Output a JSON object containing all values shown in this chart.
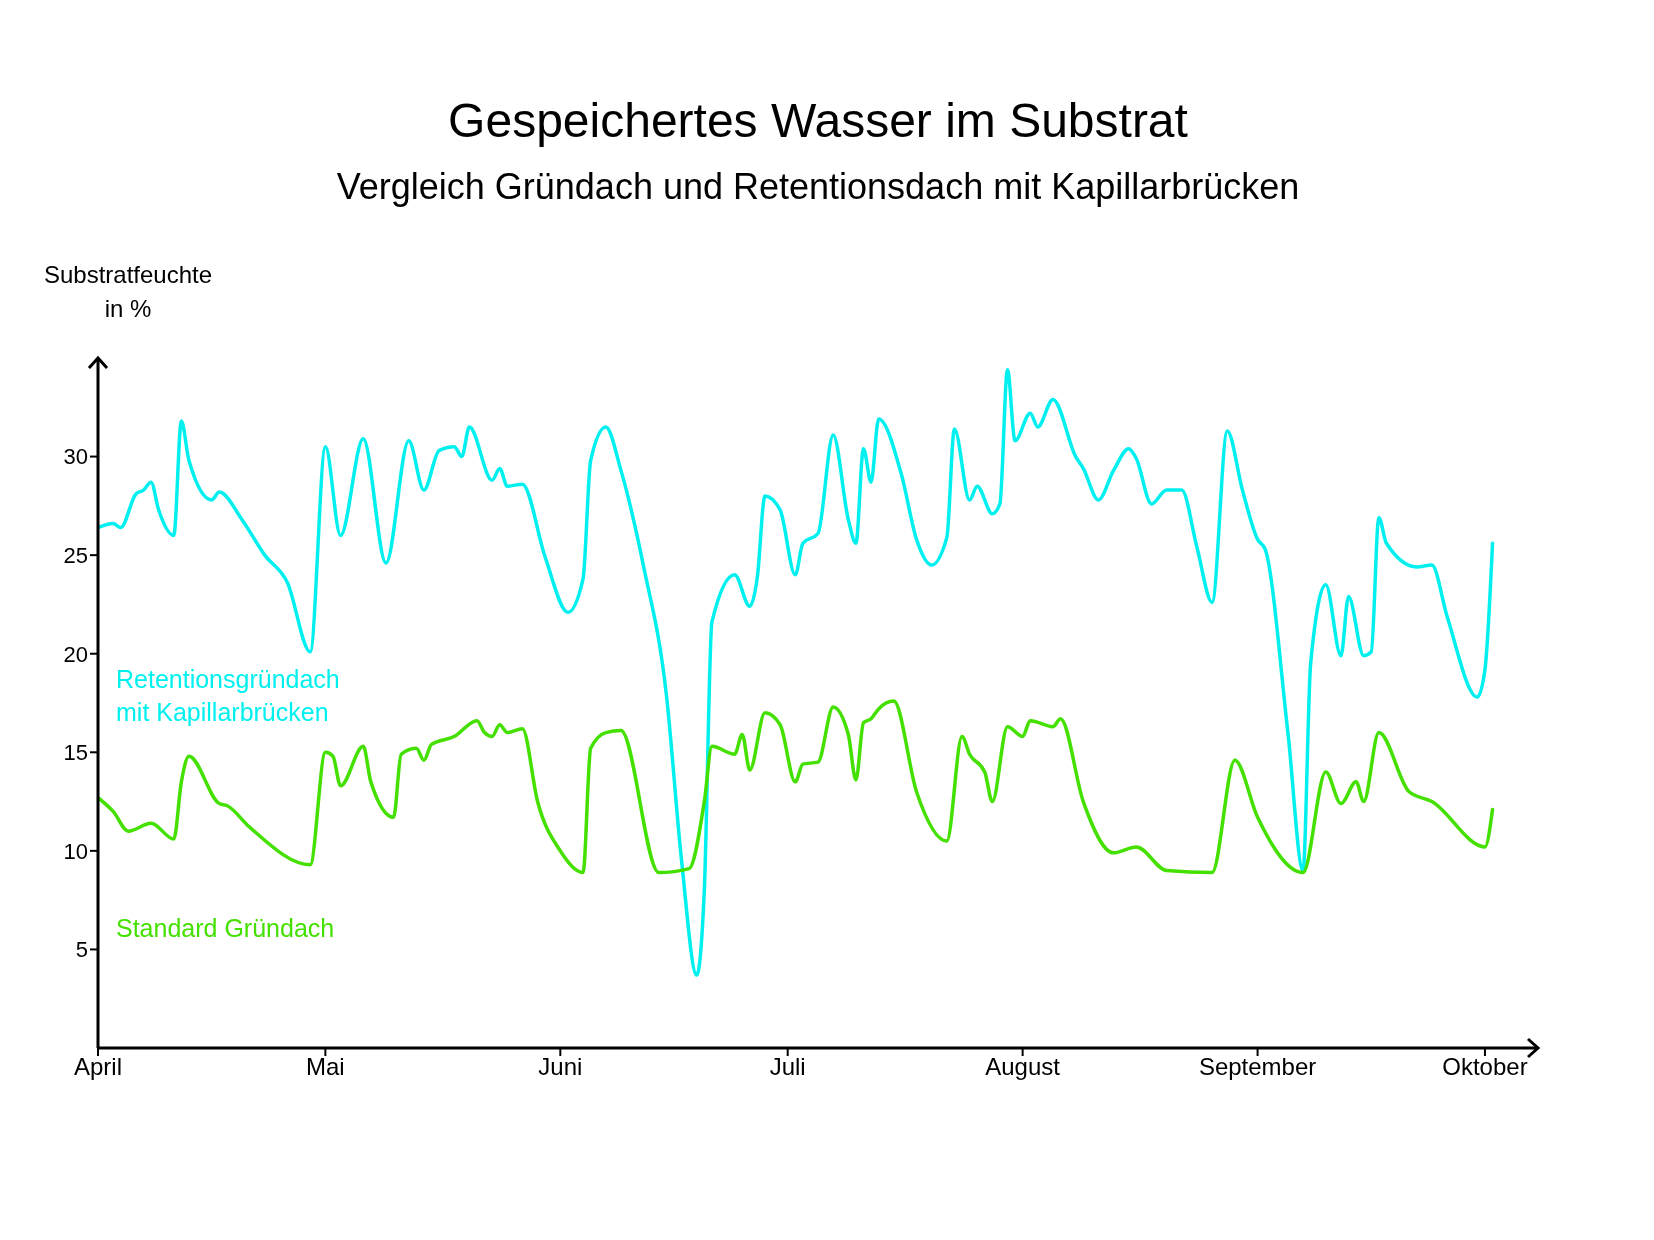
{
  "chart_data": {
    "type": "line",
    "title": "Gespeichertes Wasser im Substrat",
    "subtitle": "Vergleich Gründach und Retentionsdach mit Kapillarbrücken",
    "ylabel": "Substratfeuchte in %",
    "xlim": [
      "--04-01",
      "--10-08"
    ],
    "xticks": [
      {
        "value": "--04-01",
        "label": "April"
      },
      {
        "value": "--05-01",
        "label": "Mai"
      },
      {
        "value": "--06-01",
        "label": "Juni"
      },
      {
        "value": "--07-01",
        "label": "Juli"
      },
      {
        "value": "--08-01",
        "label": "August"
      },
      {
        "value": "--09-01",
        "label": "September"
      },
      {
        "value": "--10-01",
        "label": "Oktober"
      }
    ],
    "ylim": [
      0,
      35
    ],
    "yticks": [
      5,
      10,
      15,
      20,
      25,
      30
    ],
    "grid": false,
    "legend": false,
    "marker": "none",
    "line_style": "solid",
    "series": [
      {
        "name": "Retentionsgründach mit Kapillarbrücken",
        "color": "#00f0f0",
        "x": [
          "--04-01",
          "--04-03",
          "--04-04",
          "--04-06",
          "--04-07",
          "--04-08",
          "--04-09",
          "--04-11",
          "--04-12",
          "--04-13",
          "--04-16",
          "--04-17",
          "--04-20",
          "--04-23",
          "--04-26",
          "--04-29",
          "--05-01",
          "--05-03",
          "--05-06",
          "--05-09",
          "--05-12",
          "--05-14",
          "--05-16",
          "--05-18",
          "--05-19",
          "--05-20",
          "--05-23",
          "--05-24",
          "--05-25",
          "--05-27",
          "--05-30",
          "--06-02",
          "--06-04",
          "--06-05",
          "--06-07",
          "--06-09",
          "--06-12",
          "--06-15",
          "--06-17",
          "--06-19",
          "--06-20",
          "--06-21",
          "--06-24",
          "--06-26",
          "--06-27",
          "--06-28",
          "--06-30",
          "--07-02",
          "--07-03",
          "--07-05",
          "--07-07",
          "--07-09",
          "--07-10",
          "--07-11",
          "--07-12",
          "--07-13",
          "--07-16",
          "--07-18",
          "--07-20",
          "--07-22",
          "--07-23",
          "--07-25",
          "--07-26",
          "--07-28",
          "--07-29",
          "--07-30",
          "--07-31",
          "--08-02",
          "--08-03",
          "--08-05",
          "--08-08",
          "--08-09",
          "--08-11",
          "--08-13",
          "--08-15",
          "--08-16",
          "--08-18",
          "--08-20",
          "--08-22",
          "--08-24",
          "--08-26",
          "--08-28",
          "--08-30",
          "--09-01",
          "--09-02",
          "--09-05",
          "--09-07",
          "--09-08",
          "--09-10",
          "--09-12",
          "--09-13",
          "--09-15",
          "--09-16",
          "--09-17",
          "--09-18",
          "--09-22",
          "--09-24",
          "--09-26",
          "--09-30",
          "--10-01",
          "--10-02"
        ],
        "values": [
          26.4,
          26.6,
          26.4,
          28.1,
          28.3,
          28.7,
          27.3,
          26.0,
          31.8,
          29.8,
          27.8,
          28.2,
          26.8,
          25.0,
          23.6,
          20.1,
          30.5,
          26.0,
          30.9,
          24.6,
          30.8,
          28.3,
          30.3,
          30.5,
          30.0,
          31.5,
          28.8,
          29.4,
          28.5,
          28.6,
          24.9,
          22.1,
          23.8,
          29.8,
          31.5,
          29.3,
          24.4,
          17.9,
          9.5,
          3.7,
          8.0,
          21.6,
          24.0,
          22.4,
          23.9,
          28.0,
          27.3,
          24.0,
          25.6,
          26.1,
          31.1,
          26.8,
          25.6,
          30.4,
          28.7,
          31.9,
          29.1,
          25.8,
          24.5,
          25.9,
          31.4,
          27.8,
          28.5,
          27.1,
          27.6,
          34.4,
          30.8,
          32.2,
          31.5,
          32.9,
          30.0,
          29.4,
          27.8,
          29.3,
          30.4,
          29.9,
          27.6,
          28.3,
          28.3,
          25.4,
          22.6,
          31.3,
          28.3,
          25.8,
          25.3,
          16.0,
          9.0,
          19.5,
          23.5,
          19.9,
          22.9,
          19.9,
          20.1,
          26.9,
          25.6,
          24.4,
          24.5,
          21.9,
          17.8,
          19.2,
          25.6
        ]
      },
      {
        "name": "Standard Gründach",
        "color": "#44e000",
        "x": [
          "--04-01",
          "--04-03",
          "--04-05",
          "--04-08",
          "--04-11",
          "--04-12",
          "--04-13",
          "--04-17",
          "--04-18",
          "--04-21",
          "--04-29",
          "--05-01",
          "--05-02",
          "--05-03",
          "--05-06",
          "--05-07",
          "--05-10",
          "--05-11",
          "--05-13",
          "--05-14",
          "--05-15",
          "--05-18",
          "--05-21",
          "--05-22",
          "--05-23",
          "--05-24",
          "--05-25",
          "--05-27",
          "--05-29",
          "--06-01",
          "--06-04",
          "--06-05",
          "--06-07",
          "--06-09",
          "--06-14",
          "--06-18",
          "--06-20",
          "--06-21",
          "--06-24",
          "--06-25",
          "--06-26",
          "--06-28",
          "--06-30",
          "--07-02",
          "--07-03",
          "--07-05",
          "--07-07",
          "--07-09",
          "--07-10",
          "--07-11",
          "--07-12",
          "--07-13",
          "--07-15",
          "--07-18",
          "--07-22",
          "--07-24",
          "--07-25",
          "--07-27",
          "--07-28",
          "--07-30",
          "--08-01",
          "--08-02",
          "--08-05",
          "--08-06",
          "--08-09",
          "--08-13",
          "--08-16",
          "--08-20",
          "--08-26",
          "--08-29",
          "--09-01",
          "--09-07",
          "--09-10",
          "--09-12",
          "--09-14",
          "--09-15",
          "--09-17",
          "--09-21",
          "--09-24",
          "--10-01",
          "--10-02"
        ],
        "values": [
          12.7,
          12.0,
          11.0,
          11.4,
          10.6,
          13.5,
          14.8,
          12.4,
          12.3,
          11.2,
          9.3,
          15.0,
          14.8,
          13.3,
          15.3,
          13.5,
          11.7,
          14.9,
          15.2,
          14.6,
          15.4,
          15.8,
          16.6,
          16.0,
          15.8,
          16.4,
          16.0,
          16.2,
          12.5,
          10.0,
          8.9,
          15.2,
          16.0,
          16.1,
          8.9,
          9.1,
          12.5,
          15.3,
          14.9,
          15.9,
          14.1,
          17.0,
          16.4,
          13.5,
          14.4,
          14.5,
          17.3,
          15.9,
          13.6,
          16.5,
          16.7,
          17.2,
          17.6,
          13.0,
          10.5,
          15.8,
          14.9,
          14.0,
          12.5,
          16.3,
          15.8,
          16.6,
          16.3,
          16.7,
          12.5,
          9.9,
          10.2,
          9.0,
          8.9,
          14.6,
          11.7,
          8.9,
          14.0,
          12.4,
          13.5,
          12.5,
          16.0,
          13.0,
          12.5,
          10.2,
          12.1
        ]
      }
    ]
  }
}
